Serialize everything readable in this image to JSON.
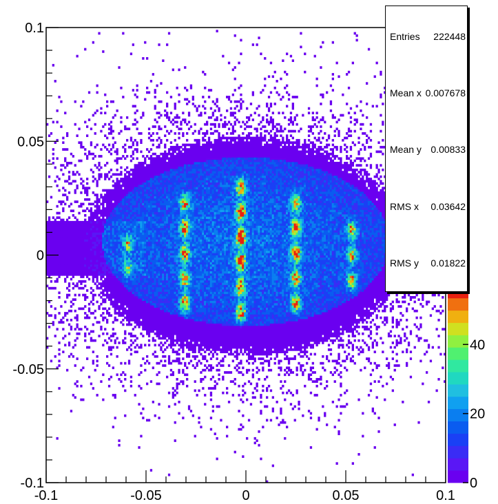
{
  "title": "",
  "stats": [
    {
      "label": "Entries",
      "value": "222448"
    },
    {
      "label": "Mean x",
      "value": "0.007678"
    },
    {
      "label": "Mean y",
      "value": "0.00833"
    },
    {
      "label": "RMS x",
      "value": "0.03642"
    },
    {
      "label": "RMS y",
      "value": "0.01822"
    }
  ],
  "chart_data": {
    "type": "heatmap",
    "xlim": [
      -0.1,
      0.1
    ],
    "ylim": [
      -0.1,
      0.1
    ],
    "zlim": [
      0,
      57
    ],
    "x_ticks": [
      {
        "value": -0.1,
        "label": "-0.1"
      },
      {
        "value": -0.05,
        "label": "-0.05"
      },
      {
        "value": 0,
        "label": "0"
      },
      {
        "value": 0.05,
        "label": "0.05"
      },
      {
        "value": 0.1,
        "label": "0.1"
      }
    ],
    "y_ticks": [
      {
        "value": -0.1,
        "label": "-0.1"
      },
      {
        "value": -0.05,
        "label": "-0.05"
      },
      {
        "value": 0,
        "label": "0"
      },
      {
        "value": 0.05,
        "label": "0.05"
      },
      {
        "value": 0.1,
        "label": "0.1"
      }
    ],
    "z_ticks": [
      {
        "value": 0,
        "label": "0"
      },
      {
        "value": 20,
        "label": "20"
      },
      {
        "value": 40,
        "label": "40"
      }
    ],
    "entries": 222448,
    "mean_x": 0.007678,
    "mean_y": 0.00833,
    "rms_x": 0.03642,
    "rms_y": 0.01822,
    "grid": false,
    "colormap": [
      "#6a00f0",
      "#5a17f5",
      "#3a2cf5",
      "#1a40f5",
      "#0a5cf0",
      "#0a7ef0",
      "#10a0f0",
      "#20bfe0",
      "#20d8c0",
      "#30e8a0",
      "#50f070",
      "#90f040",
      "#d0e020",
      "#f0b010",
      "#f07010",
      "#e82010"
    ],
    "clusters": [
      {
        "x": -0.059,
        "y": -0.006,
        "count_peak": 25
      },
      {
        "x": -0.059,
        "y": 0.005,
        "count_peak": 25
      },
      {
        "x": -0.0305,
        "y": -0.021,
        "count_peak": 40
      },
      {
        "x": -0.0305,
        "y": -0.01,
        "count_peak": 40
      },
      {
        "x": -0.0305,
        "y": 0.001,
        "count_peak": 40
      },
      {
        "x": -0.0305,
        "y": 0.012,
        "count_peak": 40
      },
      {
        "x": -0.0305,
        "y": 0.023,
        "count_peak": 40
      },
      {
        "x": -0.0025,
        "y": -0.025,
        "count_peak": 45
      },
      {
        "x": -0.0025,
        "y": -0.014,
        "count_peak": 45
      },
      {
        "x": -0.0025,
        "y": -0.003,
        "count_peak": 48
      },
      {
        "x": -0.0025,
        "y": 0.008,
        "count_peak": 55
      },
      {
        "x": -0.0025,
        "y": 0.019,
        "count_peak": 45
      },
      {
        "x": -0.0025,
        "y": 0.03,
        "count_peak": 40
      },
      {
        "x": 0.025,
        "y": -0.021,
        "count_peak": 42
      },
      {
        "x": 0.025,
        "y": -0.01,
        "count_peak": 42
      },
      {
        "x": 0.025,
        "y": 0.001,
        "count_peak": 42
      },
      {
        "x": 0.025,
        "y": 0.012,
        "count_peak": 42
      },
      {
        "x": 0.025,
        "y": 0.023,
        "count_peak": 40
      },
      {
        "x": 0.053,
        "y": -0.011,
        "count_peak": 35
      },
      {
        "x": 0.053,
        "y": 0.0,
        "count_peak": 35
      },
      {
        "x": 0.053,
        "y": 0.011,
        "count_peak": 35
      }
    ]
  }
}
